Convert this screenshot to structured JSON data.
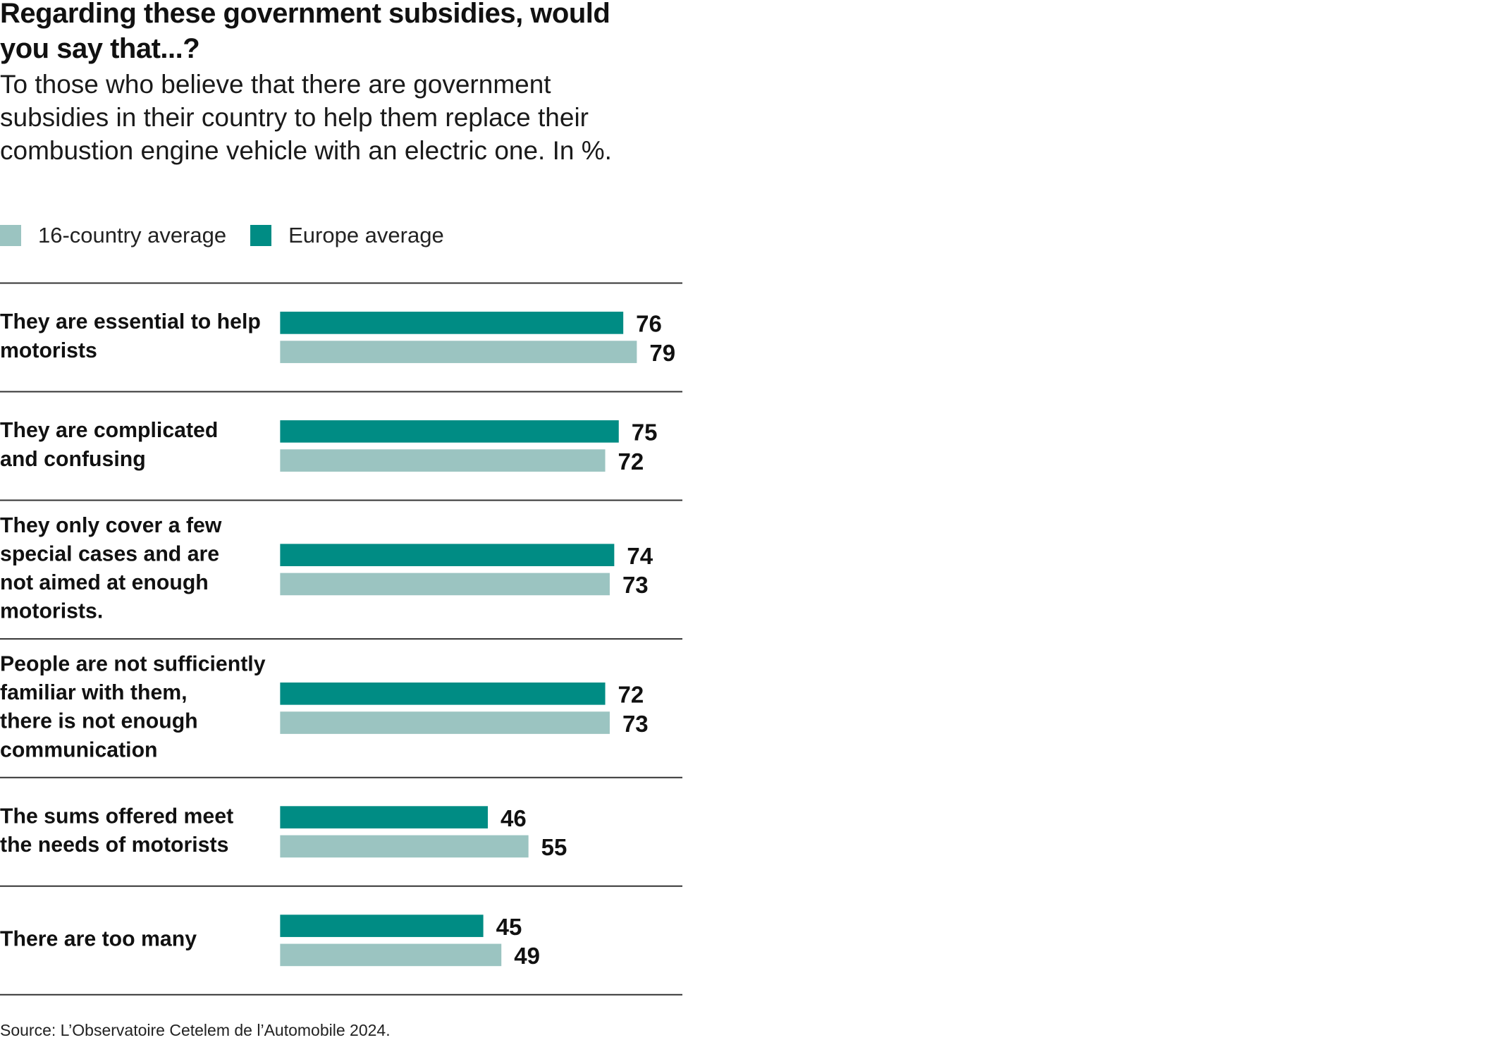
{
  "title": "Regarding these government subsidies, would you say that...?",
  "subtitle": "To those who believe that there are government subsidies in their country to help them replace their combustion engine vehicle with an electric one. In %.",
  "source": "Source: L’Observatoire Cetelem de l’Automobile 2024.",
  "colors": {
    "europe": "#008C84",
    "sixteen_country": "#9BC4C1",
    "rule": "#333333",
    "text": "#111111"
  },
  "chart_data": {
    "type": "bar",
    "orientation": "horizontal",
    "title": "Regarding these government subsidies, would you say that...?",
    "subtitle": "To those who believe that there are government subsidies in their country to help them replace their combustion engine vehicle with an electric one. In %.",
    "xlabel": "",
    "ylabel": "",
    "unit": "%",
    "xlim": [
      0,
      100
    ],
    "grid": false,
    "legend_position": "top-left",
    "categories": [
      "They are essential to help motorists",
      "They are complicated and confusing",
      "They only cover a few special cases and are not aimed at enough motorists.",
      "People are not sufficiently familiar with them, there is not enough communication",
      "The sums offered meet the needs of motorists",
      "There are too many"
    ],
    "category_lines": [
      [
        "They are essential to help",
        "motorists"
      ],
      [
        "They are complicated",
        "and confusing"
      ],
      [
        "They only cover a few",
        "special cases and are",
        "not aimed at enough",
        "motorists."
      ],
      [
        "People are not sufficiently",
        "familiar with them,",
        "there is not enough",
        "communication"
      ],
      [
        "The sums offered meet",
        "the needs of motorists"
      ],
      [
        "There are too many"
      ]
    ],
    "series": [
      {
        "name": "Europe average",
        "color": "#008C84",
        "values": [
          76,
          75,
          74,
          72,
          46,
          45
        ]
      },
      {
        "name": "16-country average",
        "color": "#9BC4C1",
        "values": [
          79,
          72,
          73,
          73,
          55,
          49
        ]
      }
    ],
    "legend": [
      {
        "name": "16-country average",
        "color": "#9BC4C1"
      },
      {
        "name": "Europe average",
        "color": "#008C84"
      }
    ]
  }
}
